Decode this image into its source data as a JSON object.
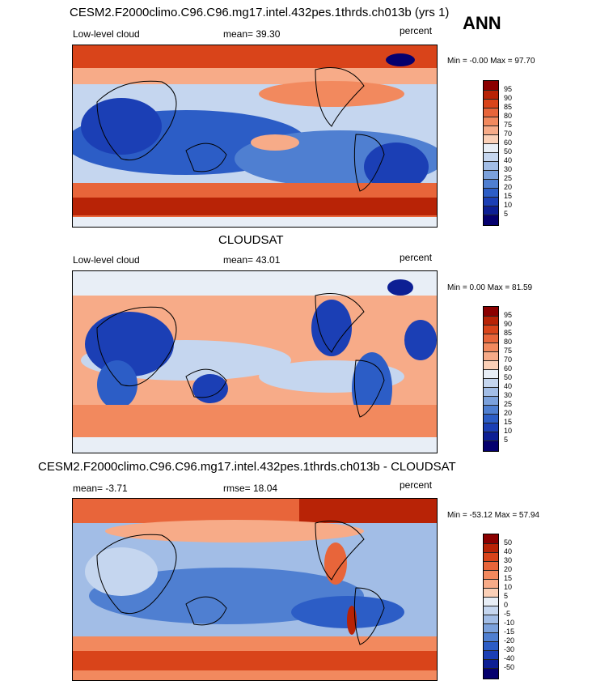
{
  "season": "ANN",
  "panels": [
    {
      "title": "CESM2.F2000climo.C96.C96.mg17.intel.432pes.1thrds.ch013b (yrs 1)",
      "left_label": "Low-level cloud",
      "center_label": "mean=  39.30",
      "units": "percent",
      "minmax": "Min =  -0.00  Max =  97.70",
      "colorbar": [
        "95",
        "90",
        "85",
        "80",
        "75",
        "70",
        "60",
        "50",
        "40",
        "30",
        "25",
        "20",
        "15",
        "10",
        "5"
      ]
    },
    {
      "title": "CLOUDSAT",
      "left_label": "Low-level cloud",
      "center_label": "mean=  43.01",
      "units": "percent",
      "minmax": "Min =   0.00  Max =  81.59",
      "colorbar": [
        "95",
        "90",
        "85",
        "80",
        "75",
        "70",
        "60",
        "50",
        "40",
        "30",
        "25",
        "20",
        "15",
        "10",
        "5"
      ]
    },
    {
      "title": "CESM2.F2000climo.C96.C96.mg17.intel.432pes.1thrds.ch013b - CLOUDSAT",
      "left_label": "mean=  -3.71",
      "center_label": "rmse=  18.04",
      "units": "percent",
      "minmax": "Min = -53.12  Max =  57.94",
      "colorbar": [
        "50",
        "40",
        "30",
        "20",
        "15",
        "10",
        "5",
        "0",
        "-5",
        "-10",
        "-15",
        "-20",
        "-30",
        "-40",
        "-50"
      ]
    }
  ],
  "colors": {
    "scale": [
      "#8b0000",
      "#b82306",
      "#d9441a",
      "#e8653a",
      "#f2895e",
      "#f7ab88",
      "#fbd0b7",
      "#e8eef6",
      "#c5d6ef",
      "#a2bde6",
      "#7ba1dc",
      "#4f7fd1",
      "#2c5dc6",
      "#1b3fb5",
      "#0d1f94",
      "#05006e"
    ],
    "land": "#000000"
  }
}
